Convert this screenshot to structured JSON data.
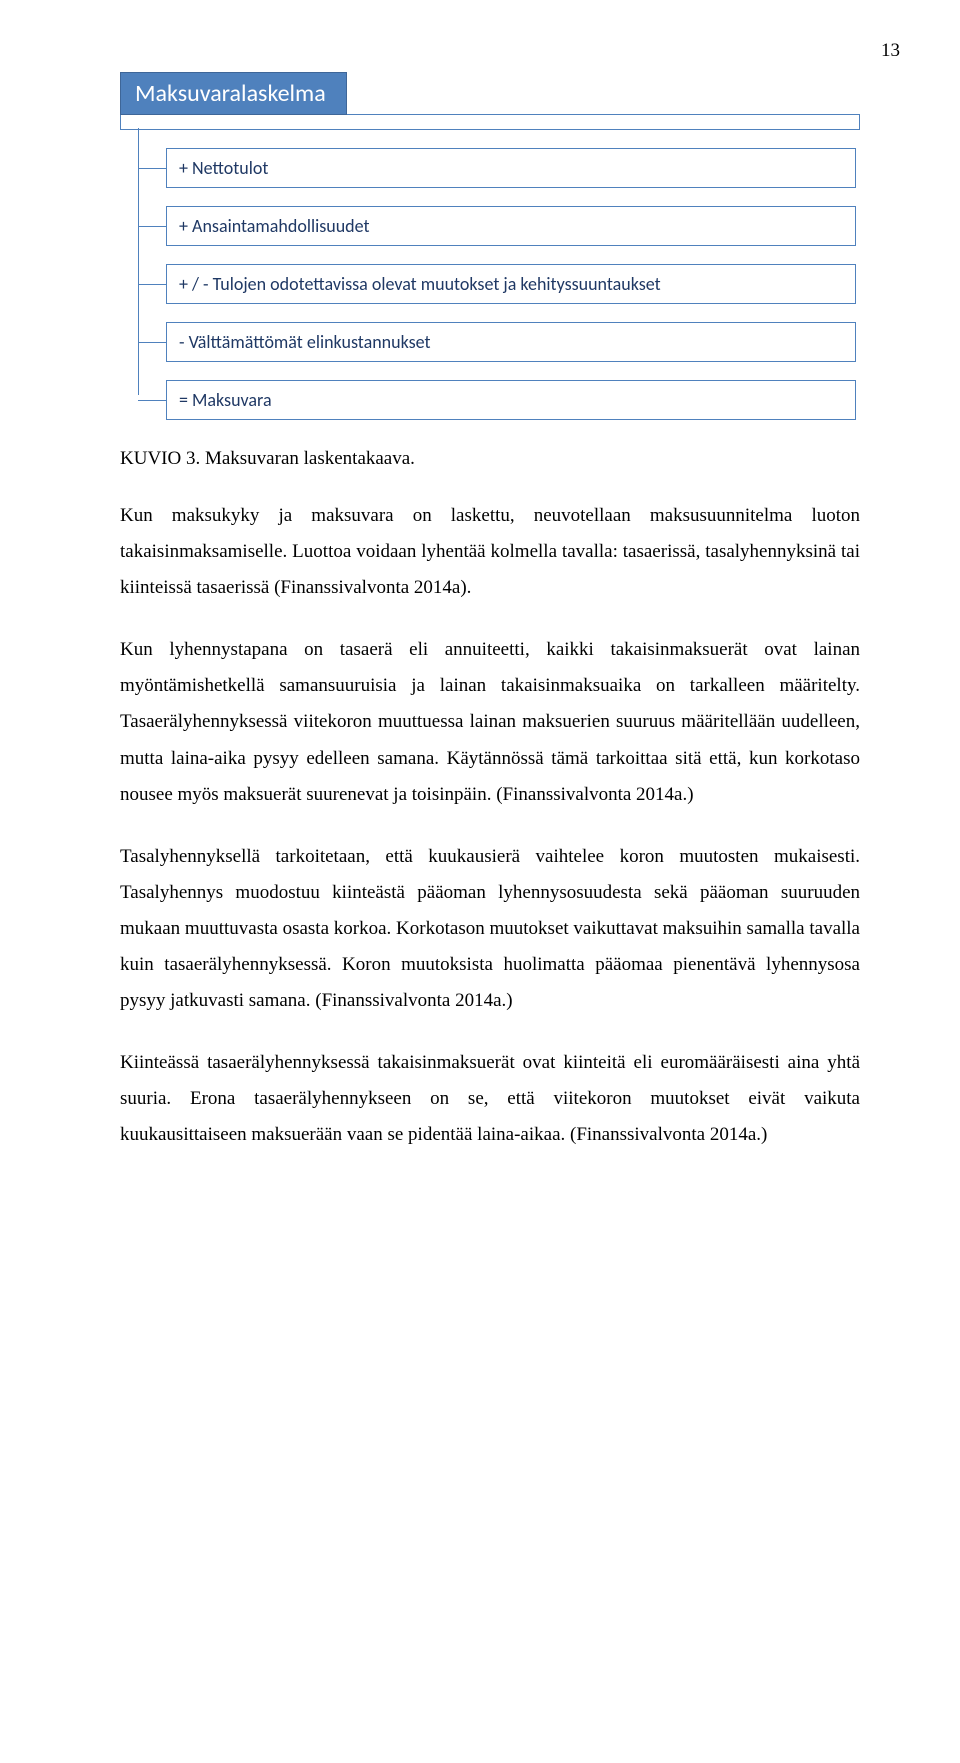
{
  "page_number": "13",
  "diagram": {
    "title": "Maksuvaralaskelma",
    "title_bg": "#4f81bd",
    "title_color": "#ffffff",
    "border_color": "#4f81bd",
    "box_text_color": "#1f3864",
    "items": [
      "+ Nettotulot",
      "+ Ansaintamahdollisuudet",
      "+ / - Tulojen odotettavissa olevat muutokset ja kehityssuuntaukset",
      "- Välttämättömät elinkustannukset",
      "= Maksuvara"
    ]
  },
  "caption": "KUVIO 3. Maksuvaran laskentakaava.",
  "paragraphs": [
    "Kun maksukyky ja maksuvara on laskettu, neuvotellaan maksusuunnitelma luoton takaisinmaksamiselle. Luottoa voidaan lyhentää kolmella tavalla: tasaerissä, tasalyhennyksinä tai kiinteissä tasaerissä (Finanssivalvonta 2014a).",
    "Kun lyhennystapana on tasaerä eli annuiteetti, kaikki takaisinmaksuerät ovat lainan myöntämishetkellä samansuuruisia ja lainan takaisinmaksuaika on tarkalleen määritelty. Tasaerälyhennyksessä viitekoron muuttuessa lainan maksuerien suuruus määritellään uudelleen, mutta laina-aika pysyy edelleen samana. Käytännössä tämä tarkoittaa sitä että, kun korkotaso nousee myös maksuerät suurenevat ja toisinpäin. (Finanssivalvonta 2014a.)",
    "Tasalyhennyksellä tarkoitetaan, että kuukausierä vaihtelee koron muutosten mukaisesti. Tasalyhennys muodostuu kiinteästä pääoman lyhennysosuudesta sekä pääoman suuruuden mukaan muuttuvasta osasta korkoa. Korkotason muutokset vaikuttavat maksuihin samalla tavalla kuin tasaerälyhennyksessä. Koron muutoksista huolimatta pääomaa pienentävä lyhennysosa pysyy jatkuvasti samana. (Finanssivalvonta 2014a.)",
    "Kiinteässä tasaerälyhennyksessä takaisinmaksuerät ovat kiinteitä eli euromääräisesti aina yhtä suuria. Erona tasaerälyhennykseen on se, että viitekoron muutokset eivät vaikuta kuukausittaiseen maksuerään vaan se pidentää laina-aikaa. (Finanssivalvonta 2014a.)"
  ]
}
